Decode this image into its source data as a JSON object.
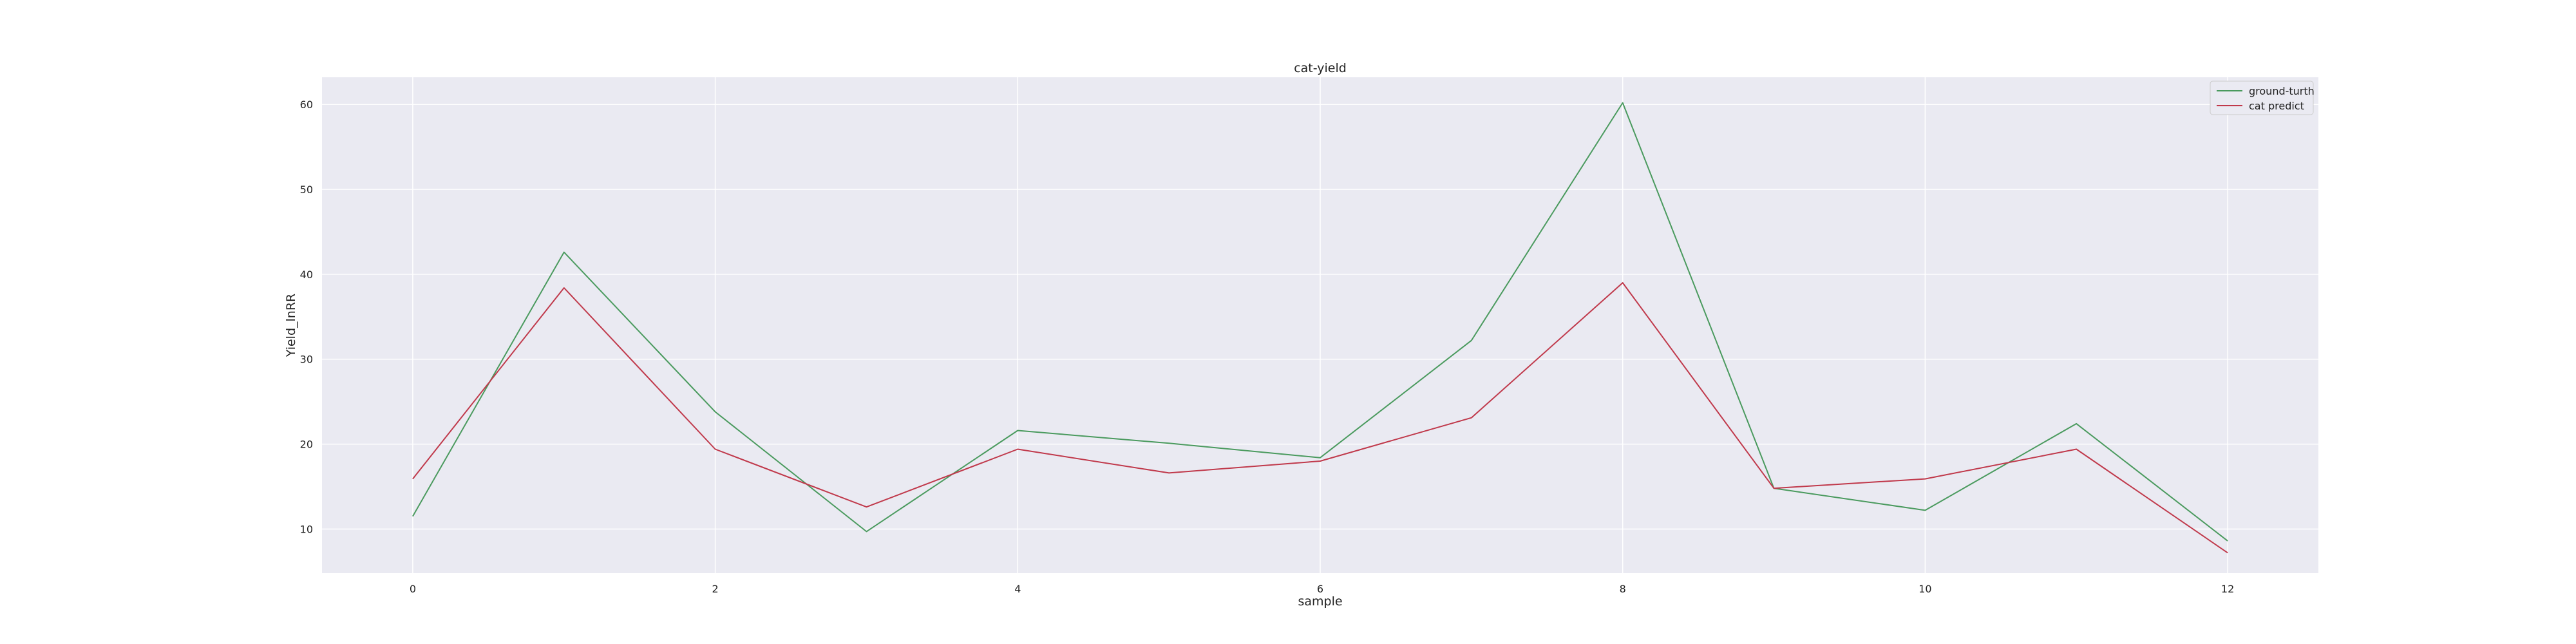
{
  "chart_data": {
    "type": "line",
    "title": "cat-yield",
    "xlabel": "sample",
    "ylabel": "Yield_lnRR",
    "x": [
      0,
      1,
      2,
      3,
      4,
      5,
      6,
      7,
      8,
      9,
      10,
      11,
      12
    ],
    "xlim": [
      -0.6,
      12.6
    ],
    "ylim": [
      4.8,
      63.2
    ],
    "xticks": [
      0,
      2,
      4,
      6,
      8,
      10,
      12
    ],
    "yticks": [
      10,
      20,
      30,
      40,
      50,
      60
    ],
    "grid": true,
    "legend_position": "top-right",
    "series": [
      {
        "name": "ground-turth",
        "color": "#4a9a5e",
        "values": [
          11.5,
          42.6,
          23.8,
          9.7,
          21.6,
          20.1,
          18.4,
          32.2,
          60.2,
          14.8,
          12.2,
          22.4,
          8.6
        ]
      },
      {
        "name": "cat predict",
        "color": "#c0394b",
        "values": [
          15.9,
          38.4,
          19.4,
          12.6,
          19.4,
          16.6,
          18.0,
          23.1,
          39.0,
          14.8,
          15.9,
          19.4,
          7.2
        ]
      }
    ],
    "colors": {
      "plot_background": "#eaeaf2",
      "grid": "#ffffff",
      "page_background": "#ffffff"
    }
  }
}
